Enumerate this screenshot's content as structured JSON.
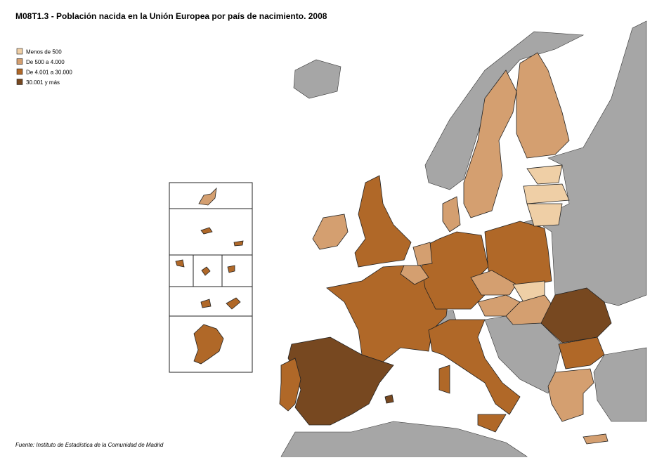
{
  "header": {
    "title": "M08T1.3 - Población nacida en la Unión Europea por país de nacimiento. 2008"
  },
  "legend": {
    "items": [
      {
        "label": "Menos de 500",
        "color": "#efcfa6"
      },
      {
        "label": "De 500  a 4.000",
        "color": "#d49f70"
      },
      {
        "label": "De 4.001 a 30.000",
        "color": "#b06828"
      },
      {
        "label": "30.001 y más",
        "color": "#774820"
      }
    ]
  },
  "footer": {
    "source": "Fuente: Instituto de Estadística de la Comunidad de Madrid"
  }
}
